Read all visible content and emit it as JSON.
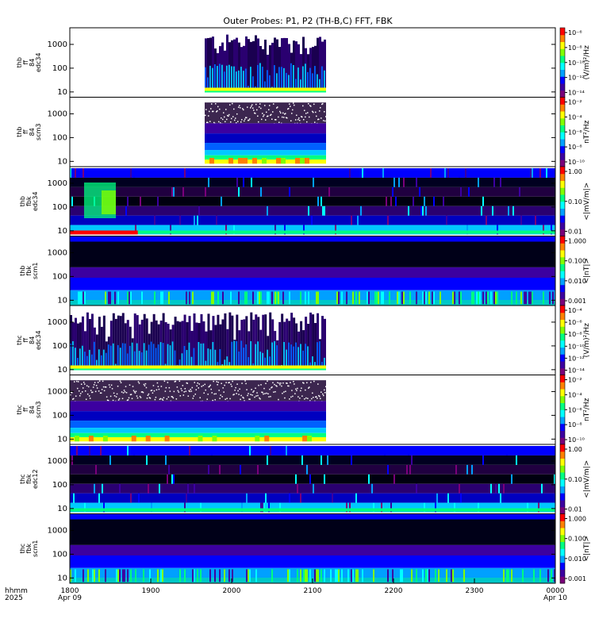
{
  "chart_data": {
    "type": "heatmap",
    "title": "Outer Probes: P1, P2 (TH-B,C) FFT, FBK",
    "time_axis": {
      "corner_label": [
        "hhmm",
        "2025"
      ],
      "ticks": [
        {
          "value": "1800",
          "date": "Apr 09"
        },
        {
          "value": "1900",
          "date": ""
        },
        {
          "value": "2000",
          "date": ""
        },
        {
          "value": "2100",
          "date": ""
        },
        {
          "value": "2200",
          "date": ""
        },
        {
          "value": "2300",
          "date": ""
        },
        {
          "value": "0000",
          "date": "Apr 10"
        }
      ],
      "range_hhmm": [
        "1800",
        "0000"
      ]
    },
    "panels": [
      {
        "ylabel": [
          "thb",
          "ff",
          "84",
          "edc34"
        ],
        "yscale": "log",
        "yticks": [
          "10",
          "100",
          "1000"
        ],
        "colorbar": {
          "label": "(V/m)²/Hz",
          "ticks": [
            "10⁻⁶",
            "10⁻⁸",
            "10⁻¹⁰",
            "10⁻¹²",
            "10⁻¹⁴"
          ]
        },
        "data_coverage_hhmm": [
          "1940",
          "2110"
        ],
        "style": "ff_e"
      },
      {
        "ylabel": [
          "thb",
          "ff",
          "84",
          "scm3"
        ],
        "yscale": "log",
        "yticks": [
          "10",
          "100",
          "1000"
        ],
        "colorbar": {
          "label": "nT²/Hz",
          "ticks": [
            "10⁻²",
            "10⁻⁴",
            "10⁻⁶",
            "10⁻⁸",
            "10⁻¹⁰"
          ]
        },
        "data_coverage_hhmm": [
          "1940",
          "2110"
        ],
        "style": "ff_b"
      },
      {
        "ylabel": [
          "thb",
          "fbk",
          "edc34"
        ],
        "yscale": "log",
        "yticks": [
          "10",
          "100",
          "1000"
        ],
        "colorbar": {
          "label": "<|mV/m|>",
          "ticks": [
            "1.00",
            "0.10",
            "0.01"
          ]
        },
        "data_coverage_hhmm": [
          "1800",
          "0000"
        ],
        "style": "fbk_e"
      },
      {
        "ylabel": [
          "thb",
          "fbk",
          "scm1"
        ],
        "yscale": "log",
        "yticks": [
          "10",
          "100",
          "1000"
        ],
        "colorbar": {
          "label": "<|nT|>",
          "ticks": [
            "1.000",
            "0.100",
            "0.010",
            "0.001"
          ]
        },
        "data_coverage_hhmm": [
          "1800",
          "0000"
        ],
        "style": "fbk_b"
      },
      {
        "ylabel": [
          "thc",
          "ff",
          "84",
          "edc34"
        ],
        "yscale": "log",
        "yticks": [
          "10",
          "100",
          "1000"
        ],
        "colorbar": {
          "label": "(V/m)²/Hz",
          "ticks": [
            "10⁻⁴",
            "10⁻⁶",
            "10⁻⁸",
            "10⁻¹⁰",
            "10⁻¹²",
            "10⁻¹⁴"
          ]
        },
        "data_coverage_hhmm": [
          "1800",
          "2110"
        ],
        "style": "ff_e"
      },
      {
        "ylabel": [
          "thc",
          "ff",
          "84",
          "scm3"
        ],
        "yscale": "log",
        "yticks": [
          "10",
          "100",
          "1000"
        ],
        "colorbar": {
          "label": "nT²/Hz",
          "ticks": [
            "10⁻²",
            "10⁻⁴",
            "10⁻⁶",
            "10⁻⁸",
            "10⁻¹⁰"
          ]
        },
        "data_coverage_hhmm": [
          "1800",
          "2110"
        ],
        "style": "ff_b"
      },
      {
        "ylabel": [
          "thc",
          "fbk",
          "edc12"
        ],
        "yscale": "log",
        "yticks": [
          "10",
          "100",
          "1000"
        ],
        "colorbar": {
          "label": "<|mV/m|>",
          "ticks": [
            "1.00",
            "0.10",
            "0.01"
          ]
        },
        "data_coverage_hhmm": [
          "1800",
          "0000"
        ],
        "style": "fbk_e"
      },
      {
        "ylabel": [
          "thc",
          "fbk",
          "scm1"
        ],
        "yscale": "log",
        "yticks": [
          "10",
          "100",
          "1000"
        ],
        "colorbar": {
          "label": "<|nT|>",
          "ticks": [
            "1.000",
            "0.100",
            "0.010",
            "0.001"
          ]
        },
        "data_coverage_hhmm": [
          "1800",
          "0000"
        ],
        "style": "fbk_b"
      }
    ],
    "colormap": [
      "#ffffff",
      "#7a007a",
      "#3c00a0",
      "#0000ff",
      "#00a0ff",
      "#00ffff",
      "#00ff80",
      "#80ff00",
      "#ffff00",
      "#ff8000",
      "#ff0000"
    ]
  }
}
